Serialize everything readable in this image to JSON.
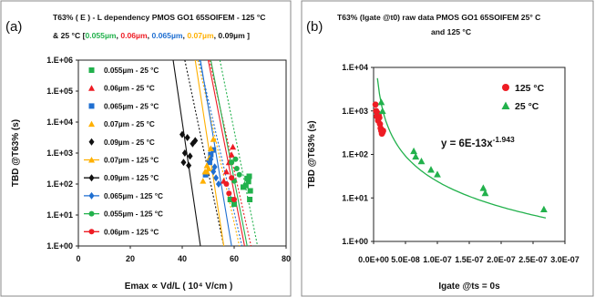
{
  "chart_data": [
    {
      "panel_label": "(a)",
      "type": "scatter",
      "title_line1": "T63% ( E ) - L dependency PMOS GO1 65SOIFEM - 125 °C",
      "title_line2_prefix": "& 25 °C [",
      "title_lengths": [
        {
          "text": "0.055µm",
          "color": "#22b14c"
        },
        {
          "text": ", ",
          "color": "#111111"
        },
        {
          "text": "0.06µm",
          "color": "#ee1c24"
        },
        {
          "text": ", ",
          "color": "#111111"
        },
        {
          "text": "0.065µm",
          "color": "#1f6fd1"
        },
        {
          "text": ", ",
          "color": "#111111"
        },
        {
          "text": "0.07µm",
          "color": "#ffb000"
        },
        {
          "text": ", 0.09µm ]",
          "color": "#111111"
        }
      ],
      "xlabel": "Emax ∝ Vd/L ( 10⁴ V/cm )",
      "ylabel": "TBD @T63% (s)",
      "x_ticks": [
        "0",
        "20",
        "40",
        "60",
        "80"
      ],
      "y_ticks": [
        "1.E+00",
        "1.E+01",
        "1.E+02",
        "1.E+03",
        "1.E+04",
        "1.E+05",
        "1.E+06"
      ],
      "xlim": [
        0,
        80
      ],
      "ylim_log10": [
        0,
        6
      ],
      "y_scale": "log",
      "grid": false,
      "legend_position": "left",
      "series": [
        {
          "name": "0.055µm - 25 °C",
          "marker": "square",
          "color": "#22b14c",
          "line": "dotted",
          "points": [
            [
              58.5,
              1.5
            ],
            [
              60,
              1.35
            ],
            [
              63.5,
              1.9
            ],
            [
              64.5,
              1.95
            ],
            [
              65,
              2.18
            ],
            [
              65.5,
              2.08
            ],
            [
              66,
              1.5
            ],
            [
              66.2,
              1.78
            ],
            [
              65.8,
              2.25
            ]
          ]
        },
        {
          "name": "0.06µm - 25 °C",
          "marker": "triangle",
          "color": "#ee1c24",
          "line": "dotted",
          "points": [
            [
              56,
              2.1
            ],
            [
              57,
              2.4
            ],
            [
              58,
              2.7
            ],
            [
              59,
              2.95
            ],
            [
              59.5,
              3.2
            ]
          ]
        },
        {
          "name": "0.065µm - 25 °C",
          "marker": "square",
          "color": "#1f6fd1",
          "line": "dotted",
          "points": [
            [
              49,
              2.3
            ],
            [
              50.5,
              2.7
            ],
            [
              51,
              2.95
            ],
            [
              52,
              3.1
            ]
          ]
        },
        {
          "name": "0.07µm - 25 °C",
          "marker": "triangle",
          "color": "#ffb000",
          "line": "dotted",
          "points": [
            [
              49.5,
              2.4
            ],
            [
              50.5,
              2.85
            ],
            [
              51,
              3.15
            ],
            [
              52,
              3.45
            ]
          ]
        },
        {
          "name": "0.09µm - 25 °C",
          "marker": "diamond",
          "color": "#111111",
          "line": "dotted",
          "points": [
            [
              43,
              2.9
            ],
            [
              44,
              3.3
            ],
            [
              45,
              3.4
            ]
          ]
        },
        {
          "name": "0.07µm - 125 °C",
          "marker": "triangle",
          "color": "#ffb000",
          "line": "solid",
          "points": [
            [
              48,
              2.1
            ],
            [
              48.8,
              2.4
            ],
            [
              49.5,
              2.6
            ],
            [
              50.2,
              2.5
            ]
          ]
        },
        {
          "name": "0.09µm - 125 °C",
          "marker": "diamond",
          "color": "#111111",
          "line": "solid",
          "points": [
            [
              40,
              3.6
            ],
            [
              40.5,
              2.7
            ],
            [
              41,
              3.0
            ],
            [
              42,
              3.5
            ],
            [
              42.5,
              2.6
            ]
          ]
        },
        {
          "name": "0.065µm - 125 °C",
          "marker": "diamond",
          "color": "#1f6fd1",
          "line": "solid",
          "points": [
            [
              51,
              2.8
            ],
            [
              52,
              2.4
            ],
            [
              53,
              2.2
            ],
            [
              54,
              2.0
            ],
            [
              52.5,
              2.55
            ]
          ]
        },
        {
          "name": "0.055µm - 125 °C",
          "marker": "circle",
          "color": "#22b14c",
          "line": "solid",
          "points": [
            [
              59,
              2.7
            ],
            [
              60,
              2.1
            ],
            [
              61,
              2.5
            ],
            [
              62,
              2.3
            ],
            [
              60.5,
              2.8
            ]
          ]
        },
        {
          "name": "0.06µm - 125 °C",
          "marker": "circle",
          "color": "#ee1c24",
          "line": "solid",
          "points": [
            [
              57,
              2.0
            ],
            [
              58,
              1.7
            ],
            [
              59,
              2.2
            ],
            [
              60,
              1.5
            ]
          ]
        }
      ],
      "fit_lines": [
        {
          "color": "#22b14c",
          "dash": "2,2",
          "from": [
            54.5,
            6.0
          ],
          "to": [
            69,
            0
          ]
        },
        {
          "color": "#ee1c24",
          "dash": "2,2",
          "from": [
            50.5,
            6.0
          ],
          "to": [
            66.5,
            0
          ]
        },
        {
          "color": "#1f6fd1",
          "dash": "2,2",
          "from": [
            46.5,
            6.0
          ],
          "to": [
            63,
            0
          ]
        },
        {
          "color": "#ffb000",
          "dash": "2,2",
          "from": [
            46,
            6.0
          ],
          "to": [
            62,
            0
          ]
        },
        {
          "color": "#111111",
          "dash": "2,2",
          "from": [
            41,
            6.0
          ],
          "to": [
            56,
            0
          ]
        },
        {
          "color": "#111111",
          "dash": "",
          "from": [
            36.5,
            6.0
          ],
          "to": [
            47,
            0
          ]
        },
        {
          "color": "#ffb000",
          "dash": "",
          "from": [
            45,
            6.0
          ],
          "to": [
            56,
            0
          ]
        },
        {
          "color": "#1f6fd1",
          "dash": "",
          "from": [
            47,
            6.0
          ],
          "to": [
            59,
            0
          ]
        },
        {
          "color": "#22b14c",
          "dash": "",
          "from": [
            51,
            6.0
          ],
          "to": [
            65,
            0
          ]
        },
        {
          "color": "#ee1c24",
          "dash": "",
          "from": [
            50,
            6.0
          ],
          "to": [
            64,
            0
          ]
        }
      ]
    },
    {
      "panel_label": "(b)",
      "type": "scatter",
      "title_line1": "T63% (Igate @t0)  raw data PMOS GO1 65SOIFEM 25° C",
      "title_line2": "and 125 °C",
      "xlabel": "Igate @ts = 0s",
      "ylabel": "TBD @T63% (s)",
      "x_ticks": [
        "0.0E+00",
        "5.0E-08",
        "1.0E-07",
        "1.5E-07",
        "2.0E-07",
        "2.5E-07",
        "3.0E-07"
      ],
      "y_ticks": [
        "1.E+00",
        "1.E+01",
        "1.E+02",
        "1.E+03",
        "1.E+04"
      ],
      "xlim": [
        0,
        3e-07
      ],
      "ylim_log10": [
        0,
        4
      ],
      "y_scale": "log",
      "grid": false,
      "legend_position": "top-right",
      "annotation": {
        "base": "y = 6E-13x",
        "exponent": "-1.943"
      },
      "fit": {
        "a": 6e-13,
        "b": -1.943,
        "color": "#22b14c",
        "x_range": [
          6e-09,
          2.7e-07
        ]
      },
      "series": [
        {
          "name": "125 °C",
          "marker": "circle",
          "color": "#ee1c24",
          "points": [
            [
              3e-09,
              1400
            ],
            [
              4e-09,
              1000
            ],
            [
              5e-09,
              750
            ],
            [
              6e-09,
              900
            ],
            [
              7e-09,
              600
            ],
            [
              8e-09,
              800
            ],
            [
              9e-09,
              700
            ],
            [
              1e-08,
              500
            ],
            [
              1.1e-08,
              400
            ],
            [
              1.2e-08,
              350
            ],
            [
              1.3e-08,
              300
            ],
            [
              1.4e-08,
              320
            ],
            [
              1.5e-08,
              350
            ]
          ]
        },
        {
          "name": "25 °C",
          "marker": "triangle",
          "color": "#22b14c",
          "points": [
            [
              1.2e-08,
              1600
            ],
            [
              1.4e-08,
              1000
            ],
            [
              6.3e-08,
              120
            ],
            [
              6.6e-08,
              90
            ],
            [
              7.5e-08,
              70
            ],
            [
              9e-08,
              45
            ],
            [
              1e-07,
              35
            ],
            [
              1.72e-07,
              17
            ],
            [
              1.75e-07,
              13
            ],
            [
              2.67e-07,
              5.5
            ]
          ]
        }
      ]
    }
  ]
}
